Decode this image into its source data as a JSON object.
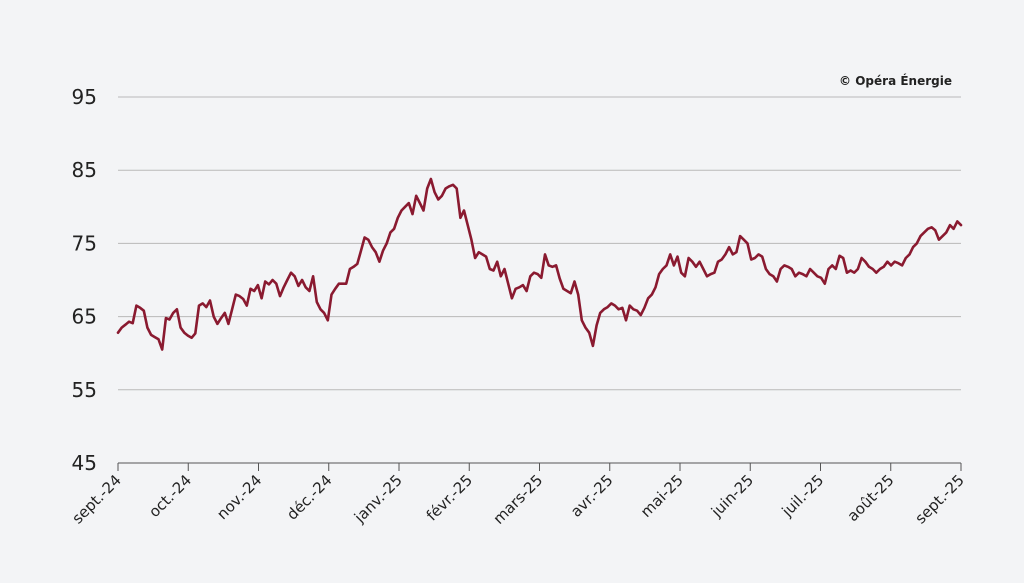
{
  "credit": "© Opéra Énergie",
  "colors": {
    "background": "#f3f4f6",
    "line": "#8a1a30",
    "grid": "#b9b9b9",
    "axis": "#555555"
  },
  "chart_data": {
    "type": "line",
    "title": "",
    "xlabel": "",
    "ylabel": "",
    "ylim": [
      45,
      95
    ],
    "yticks": [
      45,
      55,
      65,
      75,
      85,
      95
    ],
    "grid": true,
    "xticks": [
      "sept.-24",
      "oct.-24",
      "nov.-24",
      "déc.-24",
      "janv.-25",
      "févr.-25",
      "mars-25",
      "avr.-25",
      "mai-25",
      "juin-25",
      "juil.-25",
      "août-25",
      "sept.-25"
    ],
    "series": [
      {
        "values": [
          62.8,
          63.5,
          63.9,
          64.3,
          64.1,
          66.5,
          66.2,
          65.8,
          63.5,
          62.5,
          62.2,
          61.9,
          60.5,
          64.8,
          64.6,
          65.5,
          66.0,
          63.5,
          62.8,
          62.4,
          62.1,
          62.7,
          66.5,
          66.8,
          66.3,
          67.2,
          65.0,
          64.0,
          64.8,
          65.5,
          64.0,
          66.0,
          68.0,
          67.8,
          67.4,
          66.5,
          68.8,
          68.5,
          69.3,
          67.5,
          69.8,
          69.4,
          70.0,
          69.5,
          67.8,
          69.0,
          70.0,
          71.0,
          70.5,
          69.2,
          70.0,
          69.0,
          68.5,
          70.5,
          67.0,
          66.0,
          65.5,
          64.5,
          68.0,
          68.8,
          69.5,
          69.5,
          69.5,
          71.5,
          71.8,
          72.2,
          74.0,
          75.8,
          75.5,
          74.5,
          73.8,
          72.5,
          74.0,
          75.0,
          76.5,
          77.0,
          78.5,
          79.5,
          80.0,
          80.5,
          79.0,
          81.5,
          80.5,
          79.5,
          82.5,
          83.8,
          82.0,
          81.0,
          81.5,
          82.5,
          82.8,
          83.0,
          82.5,
          78.5,
          79.5,
          77.5,
          75.5,
          73.0,
          73.8,
          73.5,
          73.2,
          71.5,
          71.3,
          72.5,
          70.5,
          71.5,
          69.5,
          67.5,
          68.8,
          69.0,
          69.3,
          68.5,
          70.5,
          71.0,
          70.8,
          70.3,
          73.5,
          72.0,
          71.8,
          72.0,
          70.2,
          68.8,
          68.5,
          68.2,
          69.8,
          68.0,
          64.5,
          63.5,
          62.8,
          61.0,
          63.8,
          65.5,
          66.0,
          66.3,
          66.8,
          66.5,
          66.0,
          66.2,
          64.5,
          66.5,
          66.0,
          65.8,
          65.2,
          66.2,
          67.5,
          68.0,
          69.0,
          70.8,
          71.5,
          72.0,
          73.5,
          72.0,
          73.2,
          71.0,
          70.5,
          73.0,
          72.5,
          71.8,
          72.5,
          71.5,
          70.5,
          70.8,
          71.0,
          72.5,
          72.8,
          73.5,
          74.5,
          73.5,
          73.8,
          76.0,
          75.5,
          75.0,
          72.8,
          73.0,
          73.5,
          73.2,
          71.5,
          70.8,
          70.5,
          69.8,
          71.5,
          72.0,
          71.8,
          71.5,
          70.5,
          71.0,
          70.8,
          70.5,
          71.5,
          71.0,
          70.5,
          70.3,
          69.5,
          71.5,
          72.0,
          71.5,
          73.3,
          73.0,
          71.0,
          71.3,
          71.0,
          71.5,
          73.0,
          72.5,
          71.8,
          71.5,
          71.0,
          71.5,
          71.8,
          72.5,
          72.0,
          72.5,
          72.3,
          72.0,
          73.0,
          73.5,
          74.5,
          75.0,
          76.0,
          76.5,
          77.0,
          77.2,
          76.8,
          75.5,
          76.0,
          76.5,
          77.5,
          77.0,
          78.0,
          77.5
        ]
      }
    ]
  }
}
